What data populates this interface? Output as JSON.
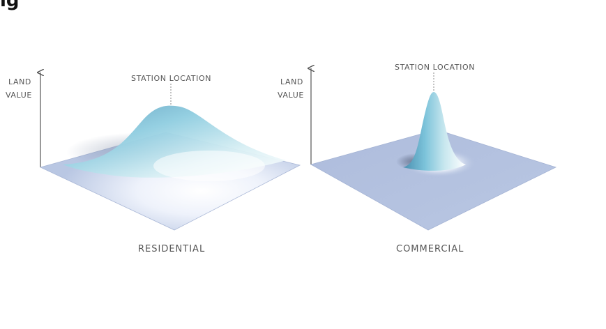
{
  "title": "ig",
  "diagram": {
    "left": {
      "axis_label_line1": "LAND",
      "axis_label_line2": "VALUE",
      "peak_label": "STATION LOCATION",
      "category_label": "RESIDENTIAL",
      "peak_shape": "broad"
    },
    "right": {
      "axis_label_line1": "LAND",
      "axis_label_line2": "VALUE",
      "peak_label": "STATION LOCATION",
      "category_label": "COMMERCIAL",
      "peak_shape": "narrow"
    },
    "colors": {
      "plane": "#b9c7e3",
      "plane_light": "#eef2fb",
      "peak_top": "#6fb4cf",
      "peak_mid": "#bfe0ea",
      "peak_highlight": "#ffffff",
      "axis": "#555555",
      "text": "#555555"
    }
  }
}
